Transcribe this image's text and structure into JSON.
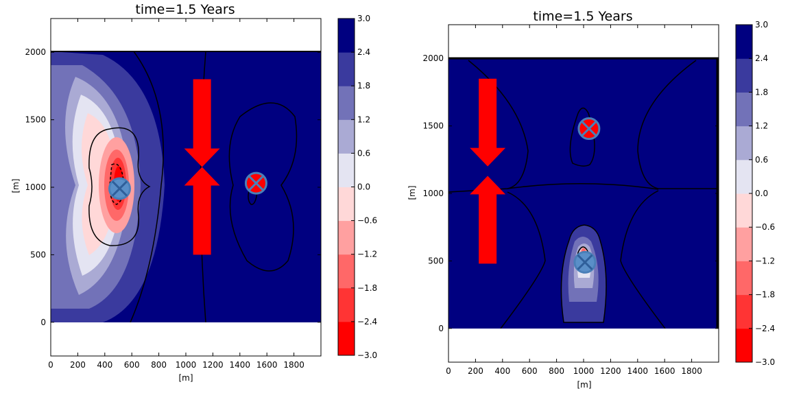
{
  "chart_data": [
    {
      "type": "heatmap",
      "title": "time=1.5 Years",
      "xlabel": "[m]",
      "ylabel": "[m]",
      "xlim": [
        0,
        2000
      ],
      "ylim": [
        -250,
        2250
      ],
      "field_extent": {
        "x": [
          0,
          2000
        ],
        "y": [
          0,
          2000
        ]
      },
      "xticks": [
        0,
        200,
        400,
        600,
        800,
        1000,
        1200,
        1400,
        1600,
        1800
      ],
      "yticks": [
        0,
        500,
        1000,
        1500,
        2000
      ],
      "wells": [
        {
          "kind": "blue-x",
          "x": 510,
          "y": 990
        },
        {
          "kind": "red-x",
          "x": 1520,
          "y": 1030
        }
      ],
      "flow_arrows": {
        "x": 1120,
        "down": {
          "from": 1800,
          "to": 1150
        },
        "up": {
          "from": 500,
          "to": 1150
        }
      },
      "colorbar": {
        "ticks": [
          "3.0",
          "2.4",
          "1.8",
          "1.2",
          "0.6",
          "0.0",
          "−0.6",
          "−1.2",
          "−1.8",
          "−2.4",
          "−3.0"
        ],
        "colors": [
          "#ff0000",
          "#ff3434",
          "#ff6868",
          "#ffa0a0",
          "#ffd8d8",
          "#e4e4f2",
          "#aaaad4",
          "#7272b8",
          "#3a3a9e",
          "#000080"
        ],
        "levels": [
          -3.0,
          -2.4,
          -1.8,
          -1.2,
          -0.6,
          0.0,
          0.6,
          1.2,
          1.8,
          2.4,
          3.0
        ]
      }
    },
    {
      "type": "heatmap",
      "title": "time=1.5 Years",
      "xlabel": "[m]",
      "ylabel": "[m]",
      "xlim": [
        0,
        2000
      ],
      "ylim": [
        -250,
        2250
      ],
      "field_extent": {
        "x": [
          0,
          2000
        ],
        "y": [
          0,
          2000
        ]
      },
      "xticks": [
        0,
        200,
        400,
        600,
        800,
        1000,
        1200,
        1400,
        1600,
        1800
      ],
      "yticks": [
        0,
        500,
        1000,
        1500,
        2000
      ],
      "wells": [
        {
          "kind": "red-x",
          "x": 1040,
          "y": 1480
        },
        {
          "kind": "blue-x",
          "x": 1010,
          "y": 490
        }
      ],
      "flow_arrows": {
        "x": 290,
        "down": {
          "from": 1850,
          "to": 1200
        },
        "up": {
          "from": 480,
          "to": 1130
        }
      },
      "colorbar": {
        "ticks": [
          "3.0",
          "2.4",
          "1.8",
          "1.2",
          "0.6",
          "0.0",
          "−0.6",
          "−1.2",
          "−1.8",
          "−2.4",
          "−3.0"
        ],
        "colors": [
          "#ff0000",
          "#ff3434",
          "#ff6868",
          "#ffa0a0",
          "#ffd8d8",
          "#e4e4f2",
          "#aaaad4",
          "#7272b8",
          "#3a3a9e",
          "#000080"
        ],
        "levels": [
          -3.0,
          -2.4,
          -1.8,
          -1.2,
          -0.6,
          0.0,
          0.6,
          1.2,
          1.8,
          2.4,
          3.0
        ]
      }
    }
  ]
}
